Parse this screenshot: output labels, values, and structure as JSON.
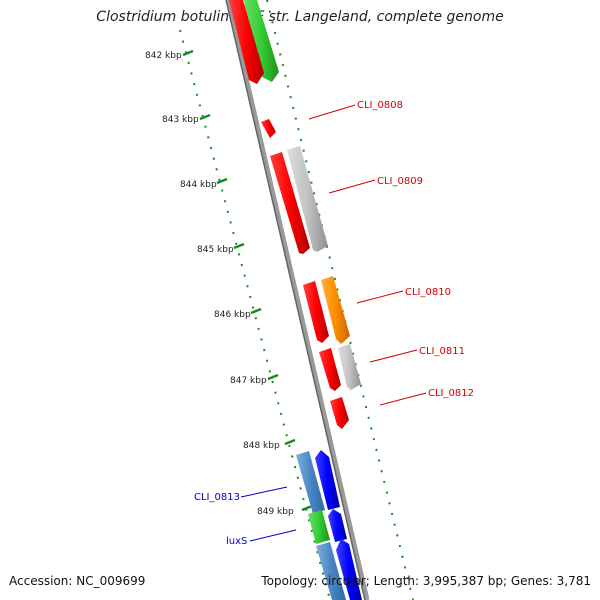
{
  "title": "Clostridium botulinum F str. Langeland, complete genome",
  "accession": "Accession: NC_009699",
  "topology": "Topology: circular; Length: 3,995,387 bp; Genes: 3,781",
  "ticks": [
    "842 kbp",
    "843 kbp",
    "844 kbp",
    "845 kbp",
    "846 kbp",
    "847 kbp",
    "848 kbp",
    "849 kbp"
  ],
  "gene_labels": [
    {
      "name": "CLI_0808",
      "color": "#d40000"
    },
    {
      "name": "CLI_0809",
      "color": "#d40000"
    },
    {
      "name": "CLI_0810",
      "color": "#d40000"
    },
    {
      "name": "CLI_0811",
      "color": "#d40000"
    },
    {
      "name": "CLI_0812",
      "color": "#d40000"
    },
    {
      "name": "CLI_0813",
      "color": "#0000cc"
    },
    {
      "name": "luxS",
      "color": "#0000cc"
    }
  ],
  "colors": {
    "red": "#ff0000",
    "green": "#33cc33",
    "gray": "#bbbbbb",
    "orange": "#ff8c00",
    "blue": "#0000ff",
    "steelblue": "#4a86c5",
    "tick_green": "#1a8a1a",
    "backbone": "#888888"
  }
}
